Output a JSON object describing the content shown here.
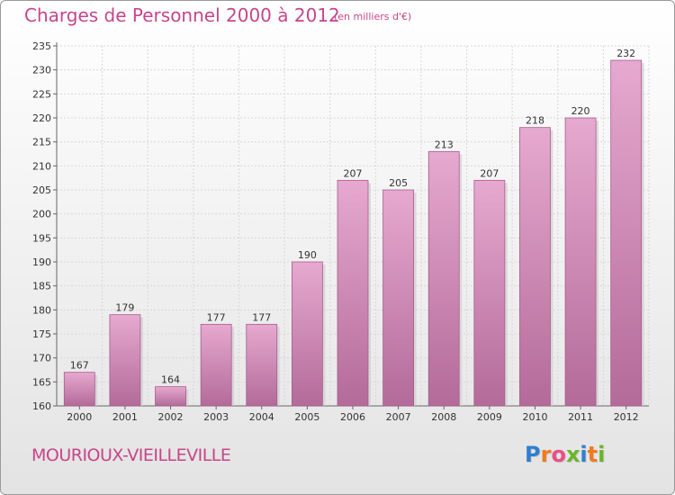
{
  "header": {
    "title": "Charges de Personnel 2000 à 2012",
    "subtitle": "(en milliers d'€)"
  },
  "footer": {
    "commune": "MOURIOUX-VIEILLEVILLE",
    "logo_letters": [
      "P",
      "r",
      "o",
      "x",
      "i",
      "t",
      "i"
    ],
    "logo_colors": [
      "#2f7fd0",
      "#f07a1e",
      "#e94e8a",
      "#69b52c",
      "#2f7fd0",
      "#f07a1e",
      "#69b52c"
    ]
  },
  "colors": {
    "bar_top": "#e6a9cf",
    "bar_bottom": "#b36b99",
    "bar_edge": "#a85b8c",
    "grid": "#d8d8d8",
    "axis": "#666666"
  },
  "chart_data": {
    "type": "bar",
    "title": "Charges de Personnel 2000 à 2012",
    "subtitle": "(en milliers d'€)",
    "categories": [
      "2000",
      "2001",
      "2002",
      "2003",
      "2004",
      "2005",
      "2006",
      "2007",
      "2008",
      "2009",
      "2010",
      "2011",
      "2012"
    ],
    "values": [
      167,
      179,
      164,
      177,
      177,
      190,
      207,
      205,
      213,
      207,
      218,
      220,
      232
    ],
    "ylim": [
      160,
      235
    ],
    "yticks": [
      160,
      165,
      170,
      175,
      180,
      185,
      190,
      195,
      200,
      205,
      210,
      215,
      220,
      225,
      230,
      235
    ],
    "grid": true,
    "data_labels": true
  }
}
